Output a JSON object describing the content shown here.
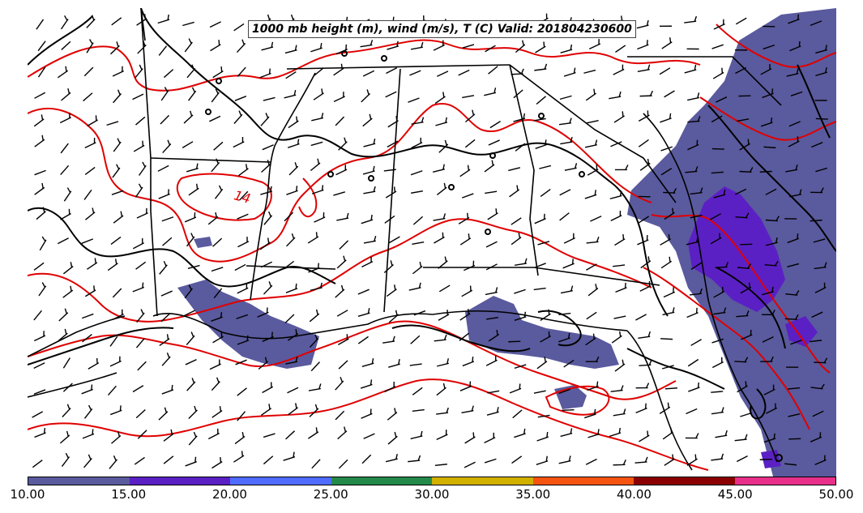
{
  "title": "1000 mb height (m), wind (m/s), T (C) Valid: 201804230600",
  "contour_label": "14",
  "colorbar": {
    "colors": [
      "#5a5a9e",
      "#5b20c4",
      "#4f6cff",
      "#238a4a",
      "#d1b000",
      "#f55410",
      "#8a0000",
      "#e8308a"
    ],
    "ticks": [
      "10.00",
      "15.00",
      "20.00",
      "25.00",
      "30.00",
      "35.00",
      "40.00",
      "45.00",
      "50.00"
    ]
  },
  "colors": {
    "precip_fill": "#5a5a9e",
    "precip_heavy": "#5b20c4",
    "temp_contour": "#e00000",
    "height_contour": "#000000",
    "borders": "#000000"
  },
  "icons": [
    "wind-barb-icon"
  ]
}
